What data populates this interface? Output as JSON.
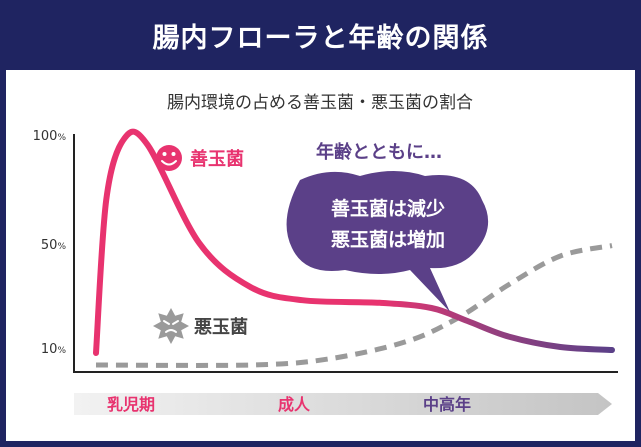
{
  "header": {
    "title": "腸内フローラと年齢の関係"
  },
  "chart_data": {
    "type": "line",
    "title": "腸内環境の占める善玉菌・悪玉菌の割合",
    "y_ticks": [
      {
        "value": 100,
        "label": "100",
        "unit": "%"
      },
      {
        "value": 50,
        "label": "50",
        "unit": "%"
      },
      {
        "value": 10,
        "label": "10",
        "unit": "%"
      }
    ],
    "stages": [
      "乳児期",
      "成人",
      "中高年"
    ],
    "series": [
      {
        "name": "善玉菌",
        "style": "solid",
        "color_start": "#e8336f",
        "color_end": "#5b4088",
        "points": [
          [
            0.0,
            8
          ],
          [
            0.02,
            70
          ],
          [
            0.055,
            98
          ],
          [
            0.1,
            95
          ],
          [
            0.2,
            50
          ],
          [
            0.3,
            33
          ],
          [
            0.4,
            28
          ],
          [
            0.55,
            27
          ],
          [
            0.65,
            25
          ],
          [
            0.72,
            20
          ],
          [
            0.8,
            14
          ],
          [
            0.9,
            10
          ],
          [
            1.0,
            9
          ]
        ]
      },
      {
        "name": "悪玉菌",
        "style": "dashed",
        "color": "#9a9a9a",
        "points": [
          [
            0.0,
            4
          ],
          [
            0.3,
            4
          ],
          [
            0.45,
            6
          ],
          [
            0.6,
            12
          ],
          [
            0.7,
            21
          ],
          [
            0.8,
            34
          ],
          [
            0.9,
            45
          ],
          [
            1.0,
            49
          ]
        ]
      }
    ],
    "annotation": {
      "lead": "年齢とともに…",
      "bubble_line1": "善玉菌は減少",
      "bubble_line2": "悪玉菌は増加"
    }
  },
  "colors": {
    "navy": "#1f2461",
    "good": "#e8336f",
    "purple": "#5b4088",
    "bad": "#9a9a9a"
  },
  "icons": {
    "good": "smile-face-icon",
    "bad": "spiky-face-icon"
  }
}
